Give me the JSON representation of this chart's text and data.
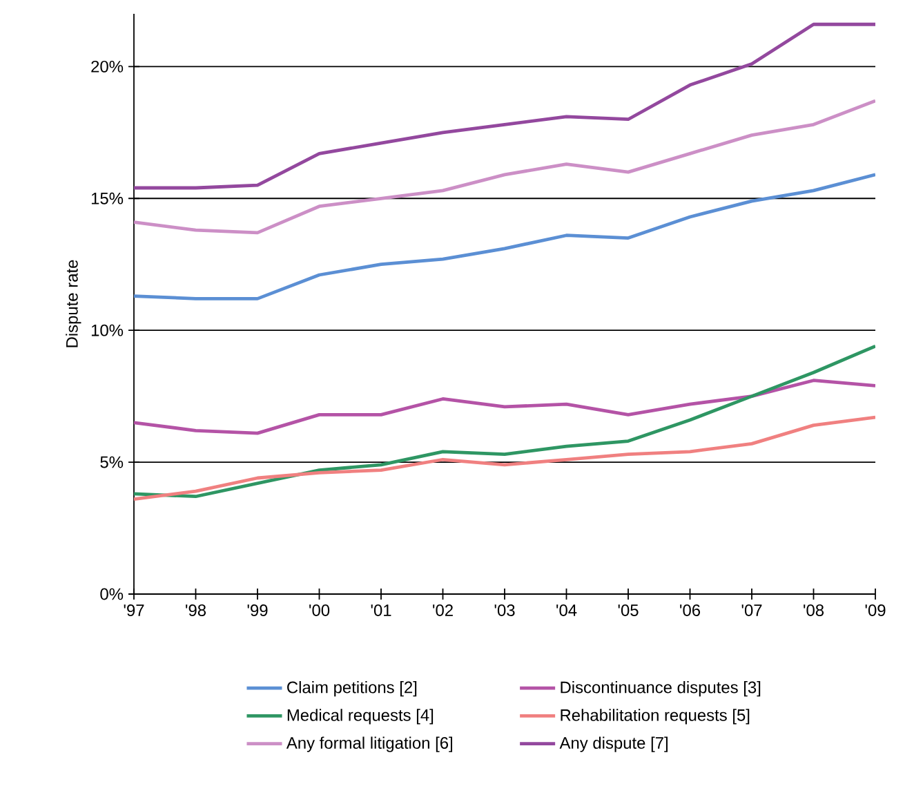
{
  "chart_data": {
    "type": "line",
    "ylabel": "Dispute rate",
    "categories": [
      "'97",
      "'98",
      "'99",
      "'00",
      "'01",
      "'02",
      "'03",
      "'04",
      "'05",
      "'06",
      "'07",
      "'08",
      "'09"
    ],
    "series": [
      {
        "name": "Claim petitions [2]",
        "color": "#5b8fd4",
        "values": [
          11.3,
          11.2,
          11.2,
          12.1,
          12.5,
          12.7,
          13.1,
          13.6,
          13.5,
          14.3,
          14.9,
          15.3,
          15.9
        ]
      },
      {
        "name": "Discontinuance disputes [3]",
        "color": "#b453a6",
        "values": [
          6.5,
          6.2,
          6.1,
          6.8,
          6.8,
          7.4,
          7.1,
          7.2,
          6.8,
          7.2,
          7.5,
          8.1,
          7.9
        ]
      },
      {
        "name": "Medical requests [4]",
        "color": "#2e9663",
        "values": [
          3.8,
          3.7,
          4.2,
          4.7,
          4.9,
          5.4,
          5.3,
          5.6,
          5.8,
          6.6,
          7.5,
          8.4,
          9.4
        ]
      },
      {
        "name": "Rehabilitation requests [5]",
        "color": "#f08080",
        "values": [
          3.6,
          3.9,
          4.4,
          4.6,
          4.7,
          5.1,
          4.9,
          5.1,
          5.3,
          5.4,
          5.7,
          6.4,
          6.7
        ]
      },
      {
        "name": "Any formal litigation [6]",
        "color": "#cc8fc6",
        "values": [
          14.1,
          13.8,
          13.7,
          14.7,
          15.0,
          15.3,
          15.9,
          16.3,
          16.0,
          16.7,
          17.4,
          17.8,
          18.7
        ]
      },
      {
        "name": "Any dispute [7]",
        "color": "#93489e",
        "values": [
          15.4,
          15.4,
          15.5,
          16.7,
          17.1,
          17.5,
          17.8,
          18.1,
          18.0,
          19.3,
          20.1,
          21.6,
          21.6
        ]
      }
    ],
    "ylim": [
      0,
      22
    ],
    "yticks": [
      {
        "value": 0,
        "label": "0%"
      },
      {
        "value": 5,
        "label": "5%"
      },
      {
        "value": 10,
        "label": "10%"
      },
      {
        "value": 15,
        "label": "15%"
      },
      {
        "value": 20,
        "label": "20%"
      }
    ],
    "grid": "y",
    "legend": "bottom",
    "marker": "none",
    "line_style": "solid"
  }
}
